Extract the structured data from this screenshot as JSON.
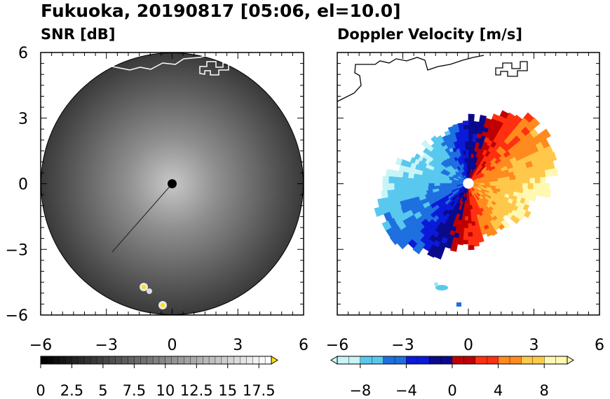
{
  "title": "Fukuoka, 20190817 [05:06, el=10.0]",
  "chart_data": [
    {
      "type": "heatmap",
      "title": "SNR [dB]",
      "subtitle": "",
      "x_range": [
        -6,
        6
      ],
      "y_range": [
        -6,
        6
      ],
      "x_ticks": [
        -6,
        -3,
        0,
        3,
        6
      ],
      "y_ticks": [
        6,
        3,
        0,
        -3,
        -6
      ],
      "x_tick_labels": [
        "−6",
        "−3",
        "0",
        "3",
        "6"
      ],
      "y_tick_labels": [
        "6",
        "3",
        "0",
        "−3",
        "−6"
      ],
      "range_ring_radius": 6,
      "colorbar": {
        "min": 0,
        "max": 18.5,
        "extend": "max",
        "colors": [
          "#000000",
          "#ffffff"
        ],
        "extend_color": "#ffe000",
        "ticks": [
          0,
          2.5,
          5,
          7.5,
          10,
          12.5,
          15,
          17.5
        ],
        "tick_labels": [
          "0",
          "2.5",
          "5",
          "7.5",
          "10",
          "12.5",
          "15",
          "17.5"
        ]
      },
      "center_marker_color": "#000000"
    },
    {
      "type": "heatmap",
      "title": "Doppler Velocity [m/s]",
      "subtitle": "",
      "x_range": [
        -6,
        6
      ],
      "y_range": [
        -6,
        6
      ],
      "x_ticks": [
        -6,
        -3,
        0,
        3,
        6
      ],
      "y_ticks": [
        6,
        3,
        0,
        -3,
        -6
      ],
      "x_tick_labels": [
        "−6",
        "−3",
        "0",
        "3",
        "6"
      ],
      "y_tick_labels": [],
      "colorbar": {
        "min": -10,
        "max": 10,
        "extend": "both",
        "colors": [
          "#c8f4f8",
          "#58c8ee",
          "#1e6fe0",
          "#0b1ad8",
          "#0a0a8c",
          "#c00000",
          "#ff3010",
          "#ff8a1e",
          "#ffc84a",
          "#fff8b0"
        ],
        "ticks": [
          -8,
          -4,
          0,
          4,
          8
        ],
        "tick_labels": [
          "−8",
          "−4",
          "0",
          "4",
          "8"
        ]
      },
      "center_marker_color": "#ffffff"
    }
  ]
}
